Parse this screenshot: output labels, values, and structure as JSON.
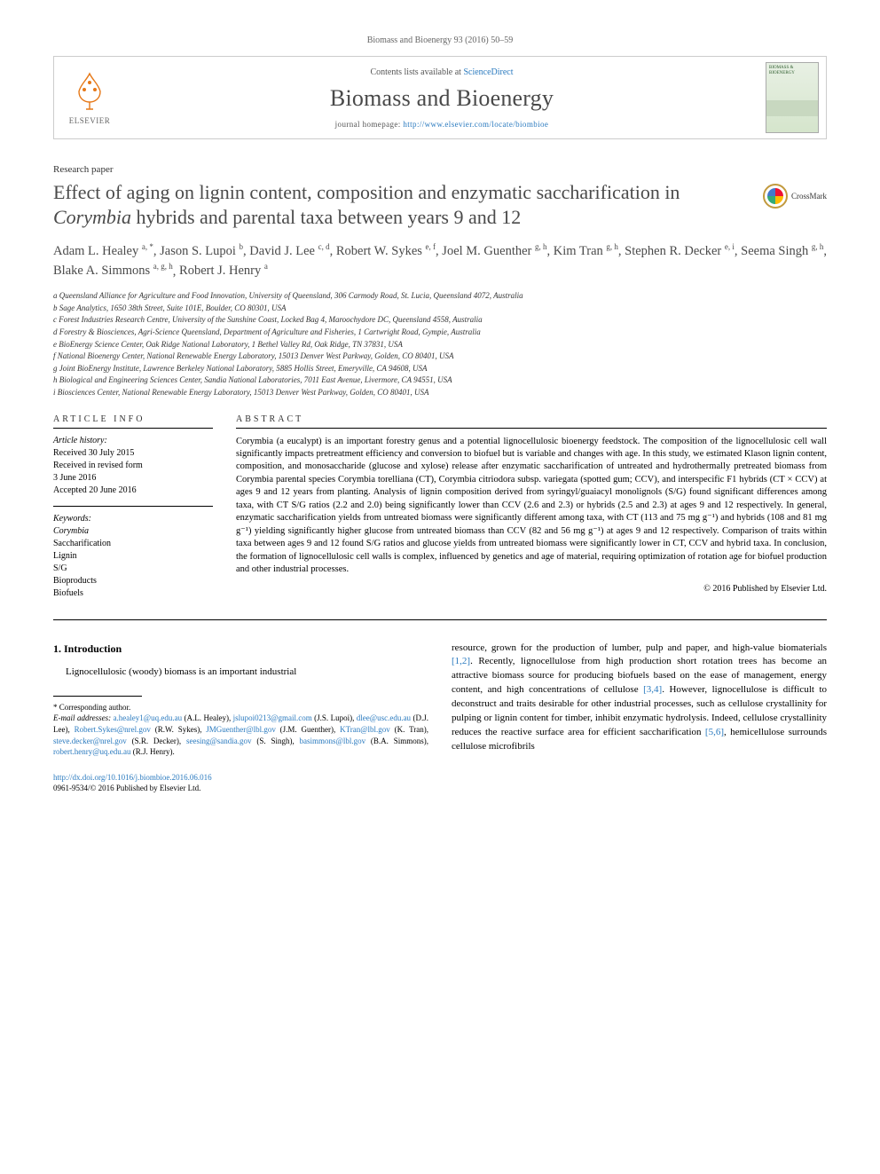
{
  "journal_ref": "Biomass and Bioenergy 93 (2016) 50–59",
  "masthead": {
    "contents_prefix": "Contents lists available at ",
    "contents_link": "ScienceDirect",
    "journal_title": "Biomass and Bioenergy",
    "homepage_prefix": "journal homepage: ",
    "homepage_url": "http://www.elsevier.com/locate/biombioe",
    "elsevier": "ELSEVIER",
    "cover_label": "BIOMASS & BIOENERGY"
  },
  "paper_type": "Research paper",
  "title_pre": "Effect of aging on lignin content, composition and enzymatic saccharification in ",
  "title_em": "Corymbia",
  "title_post": " hybrids and parental taxa between years 9 and 12",
  "crossmark": "CrossMark",
  "authors": [
    {
      "name": "Adam L. Healey",
      "aff": "a, *"
    },
    {
      "name": "Jason S. Lupoi",
      "aff": "b"
    },
    {
      "name": "David J. Lee",
      "aff": "c, d"
    },
    {
      "name": "Robert W. Sykes",
      "aff": "e, f"
    },
    {
      "name": "Joel M. Guenther",
      "aff": "g, h"
    },
    {
      "name": "Kim Tran",
      "aff": "g, h"
    },
    {
      "name": "Stephen R. Decker",
      "aff": "e, i"
    },
    {
      "name": "Seema Singh",
      "aff": "g, h"
    },
    {
      "name": "Blake A. Simmons",
      "aff": "a, g, h"
    },
    {
      "name": "Robert J. Henry",
      "aff": "a"
    }
  ],
  "affiliations": [
    "a Queensland Alliance for Agriculture and Food Innovation, University of Queensland, 306 Carmody Road, St. Lucia, Queensland 4072, Australia",
    "b Sage Analytics, 1650 38th Street, Suite 101E, Boulder, CO 80301, USA",
    "c Forest Industries Research Centre, University of the Sunshine Coast, Locked Bag 4, Maroochydore DC, Queensland 4558, Australia",
    "d Forestry & Biosciences, Agri-Science Queensland, Department of Agriculture and Fisheries, 1 Cartwright Road, Gympie, Australia",
    "e BioEnergy Science Center, Oak Ridge National Laboratory, 1 Bethel Valley Rd, Oak Ridge, TN 37831, USA",
    "f National Bioenergy Center, National Renewable Energy Laboratory, 15013 Denver West Parkway, Golden, CO 80401, USA",
    "g Joint BioEnergy Institute, Lawrence Berkeley National Laboratory, 5885 Hollis Street, Emeryville, CA 94608, USA",
    "h Biological and Engineering Sciences Center, Sandia National Laboratories, 7011 East Avenue, Livermore, CA 94551, USA",
    "i Biosciences Center, National Renewable Energy Laboratory, 15013 Denver West Parkway, Golden, CO 80401, USA"
  ],
  "article_info_head": "ARTICLE INFO",
  "abstract_head": "ABSTRACT",
  "history_label": "Article history:",
  "history": [
    "Received 30 July 2015",
    "Received in revised form",
    "3 June 2016",
    "Accepted 20 June 2016"
  ],
  "keywords_label": "Keywords:",
  "keywords": [
    "Corymbia",
    "Saccharification",
    "Lignin",
    "S/G",
    "Bioproducts",
    "Biofuels"
  ],
  "abstract": "Corymbia (a eucalypt) is an important forestry genus and a potential lignocellulosic bioenergy feedstock. The composition of the lignocellulosic cell wall significantly impacts pretreatment efficiency and conversion to biofuel but is variable and changes with age. In this study, we estimated Klason lignin content, composition, and monosaccharide (glucose and xylose) release after enzymatic saccharification of untreated and hydrothermally pretreated biomass from Corymbia parental species Corymbia torelliana (CT), Corymbia citriodora subsp. variegata (spotted gum; CCV), and interspecific F1 hybrids (CT × CCV) at ages 9 and 12 years from planting. Analysis of lignin composition derived from syringyl/guaiacyl monolignols (S/G) found significant differences among taxa, with CT S/G ratios (2.2 and 2.0) being significantly lower than CCV (2.6 and 2.3) or hybrids (2.5 and 2.3) at ages 9 and 12 respectively. In general, enzymatic saccharification yields from untreated biomass were significantly different among taxa, with CT (113 and 75 mg g⁻¹) and hybrids (108 and 81 mg g⁻¹) yielding significantly higher glucose from untreated biomass than CCV (82 and 56 mg g⁻¹) at ages 9 and 12 respectively. Comparison of traits within taxa between ages 9 and 12 found S/G ratios and glucose yields from untreated biomass were significantly lower in CT, CCV and hybrid taxa. In conclusion, the formation of lignocellulosic cell walls is complex, influenced by genetics and age of material, requiring optimization of rotation age for biofuel production and other industrial processes.",
  "abstract_copyright": "© 2016 Published by Elsevier Ltd.",
  "intro_head": "1. Introduction",
  "intro_p1": "Lignocellulosic (woody) biomass is an important industrial",
  "intro_p2_a": "resource, grown for the production of lumber, pulp and paper, and high-value biomaterials ",
  "intro_p2_ref1": "[1,2]",
  "intro_p2_b": ". Recently, lignocellulose from high production short rotation trees has become an attractive biomass source for producing biofuels based on the ease of management, energy content, and high concentrations of cellulose ",
  "intro_p2_ref2": "[3,4]",
  "intro_p2_c": ". However, lignocellulose is difficult to deconstruct and traits desirable for other industrial processes, such as cellulose crystallinity for pulping or lignin content for timber, inhibit enzymatic hydrolysis. Indeed, cellulose crystallinity reduces the reactive surface area for efficient saccharification ",
  "intro_p2_ref3": "[5,6]",
  "intro_p2_d": ", hemicellulose surrounds cellulose microfibrils",
  "footnote_corr": "* Corresponding author.",
  "footnote_email_label": "E-mail addresses:",
  "emails": [
    {
      "addr": "a.healey1@uq.edu.au",
      "who": "(A.L. Healey)"
    },
    {
      "addr": "jslupoi0213@gmail.com",
      "who": "(J.S. Lupoi)"
    },
    {
      "addr": "dlee@usc.edu.au",
      "who": "(D.J. Lee)"
    },
    {
      "addr": "Robert.Sykes@nrel.gov",
      "who": "(R.W. Sykes)"
    },
    {
      "addr": "JMGuenther@lbl.gov",
      "who": "(J.M. Guenther)"
    },
    {
      "addr": "KTran@lbl.gov",
      "who": "(K. Tran)"
    },
    {
      "addr": "steve.decker@nrel.gov",
      "who": "(S.R. Decker)"
    },
    {
      "addr": "seesing@sandia.gov",
      "who": "(S. Singh)"
    },
    {
      "addr": "basimmons@lbl.gov",
      "who": "(B.A. Simmons)"
    },
    {
      "addr": "robert.henry@uq.edu.au",
      "who": "(R.J. Henry)"
    }
  ],
  "doi": "http://dx.doi.org/10.1016/j.biombioe.2016.06.016",
  "issn_line": "0961-9534/© 2016 Published by Elsevier Ltd."
}
